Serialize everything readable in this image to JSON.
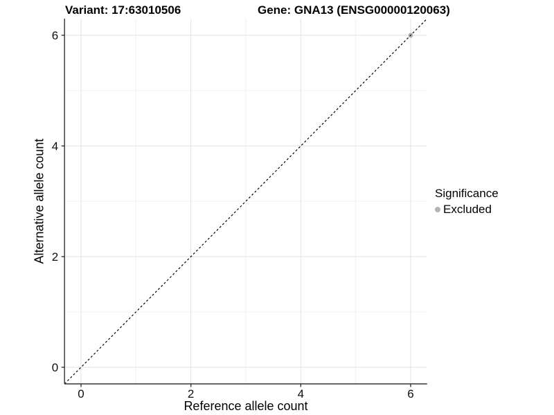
{
  "chart_data": {
    "type": "scatter",
    "title_left": "Variant: 17:63010506",
    "title_right": "Gene: GNA13 (ENSG00000120063)",
    "xlabel": "Reference allele count",
    "ylabel": "Alternative allele count",
    "xlim": [
      -0.3,
      6.3
    ],
    "ylim": [
      -0.3,
      6.3
    ],
    "x_ticks": [
      0,
      2,
      4,
      6
    ],
    "y_ticks": [
      0,
      2,
      4,
      6
    ],
    "x_minor_ticks": [
      1,
      3,
      5
    ],
    "y_minor_ticks": [
      1,
      3,
      5
    ],
    "grid": true,
    "series": [
      {
        "name": "Excluded",
        "color": "#b4b4b4",
        "points": [
          {
            "x": 6,
            "y": 6
          }
        ]
      }
    ],
    "reference_line": {
      "type": "identity",
      "slope": 1,
      "intercept": 0,
      "style": "dashed",
      "color": "#000000"
    },
    "legend": {
      "title": "Significance",
      "position": "right",
      "entries": [
        {
          "label": "Excluded",
          "color": "#b4b4b4"
        }
      ]
    }
  }
}
